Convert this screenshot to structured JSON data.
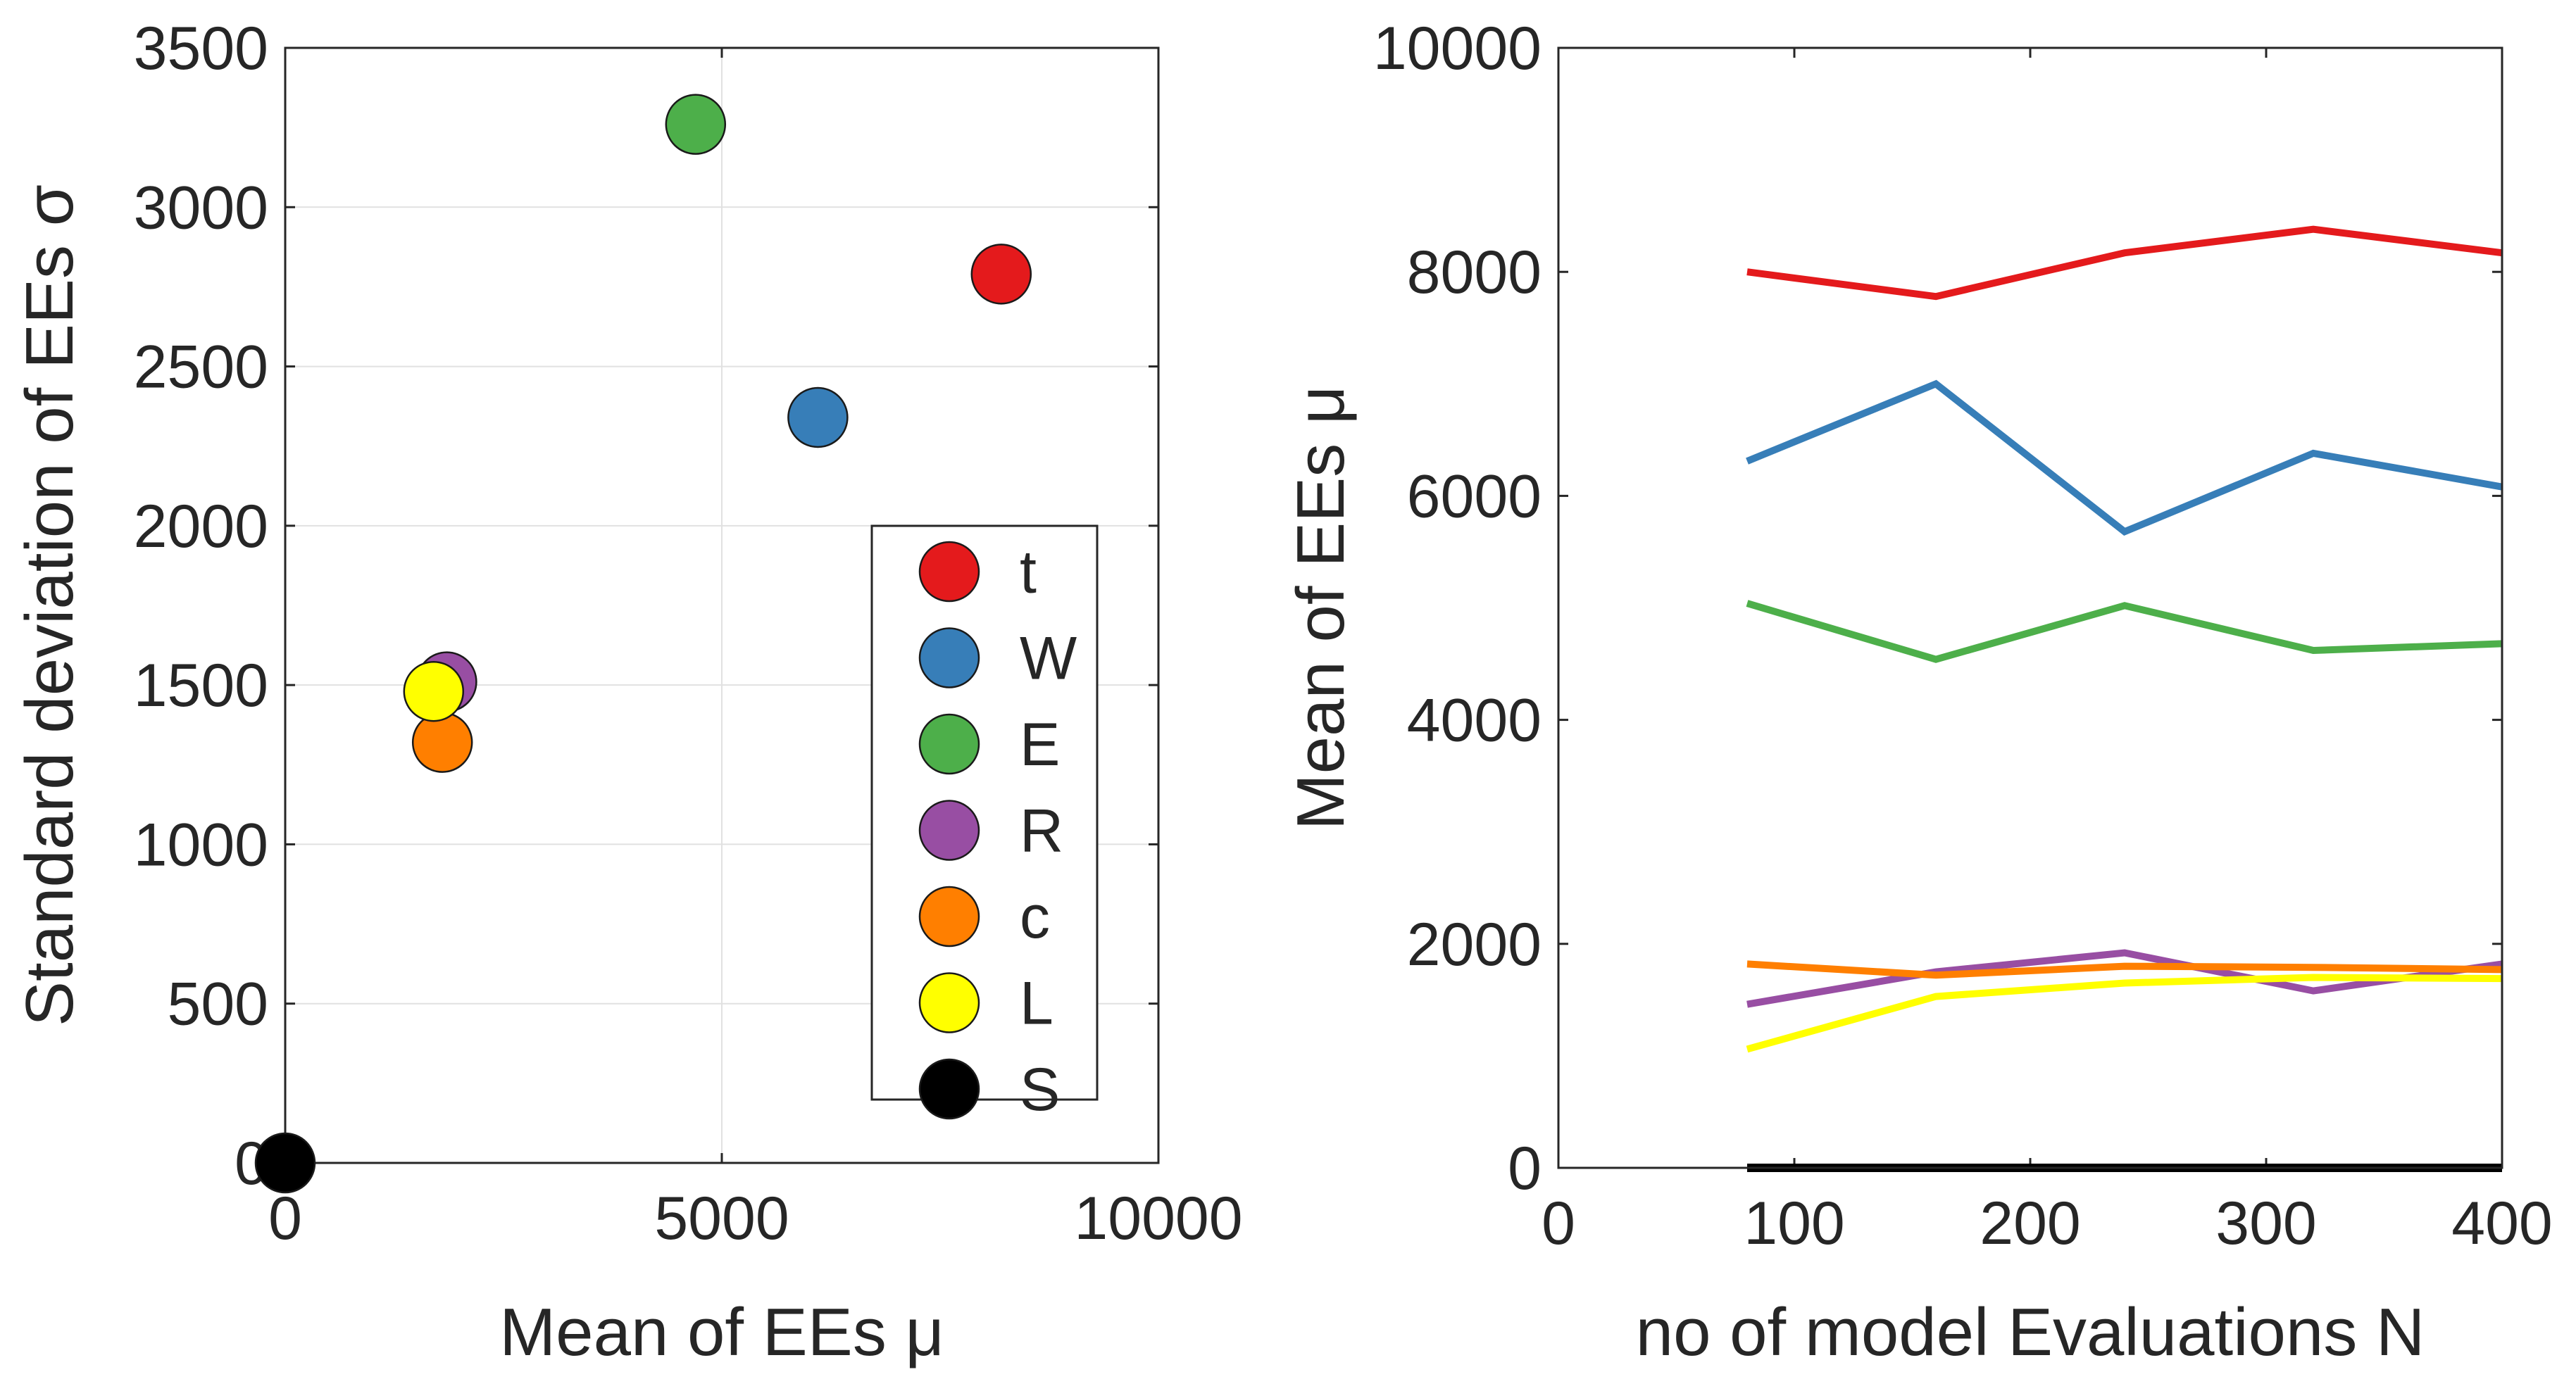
{
  "chart_data": [
    {
      "type": "scatter",
      "title": "",
      "xlabel": "Mean of EEs μ",
      "ylabel": "Standard deviation of EEs σ",
      "xlim": [
        0,
        10000
      ],
      "ylim": [
        0,
        3500
      ],
      "xticks": [
        0,
        5000,
        10000
      ],
      "yticks": [
        0,
        500,
        1000,
        1500,
        2000,
        2500,
        3000,
        3500
      ],
      "xtick_labels": [
        "0",
        "5000",
        "10000"
      ],
      "ytick_labels": [
        "0",
        "500",
        "1000",
        "1500",
        "2000",
        "2500",
        "3000",
        "3500"
      ],
      "grid": true,
      "legend_position": "lower-right",
      "series": [
        {
          "name": "t",
          "color": "#e41a1c",
          "x": 8200,
          "y": 2790
        },
        {
          "name": "W",
          "color": "#377eb8",
          "x": 6100,
          "y": 2340
        },
        {
          "name": "E",
          "color": "#4daf4a",
          "x": 4700,
          "y": 3260
        },
        {
          "name": "R",
          "color": "#984ea3",
          "x": 1850,
          "y": 1510
        },
        {
          "name": "c",
          "color": "#ff7f00",
          "x": 1800,
          "y": 1320
        },
        {
          "name": "L",
          "color": "#ffff00",
          "x": 1700,
          "y": 1480
        },
        {
          "name": "S",
          "color": "#000000",
          "x": 0,
          "y": 0
        }
      ]
    },
    {
      "type": "line",
      "title": "",
      "xlabel": "no of model Evaluations N",
      "ylabel": "Mean of EEs μ",
      "xlim": [
        0,
        400
      ],
      "ylim": [
        0,
        10000
      ],
      "xticks": [
        0,
        100,
        200,
        300,
        400
      ],
      "yticks": [
        0,
        2000,
        4000,
        6000,
        8000,
        10000
      ],
      "xtick_labels": [
        "0",
        "100",
        "200",
        "300",
        "400"
      ],
      "ytick_labels": [
        "0",
        "2000",
        "4000",
        "6000",
        "8000",
        "10000"
      ],
      "grid": false,
      "x": [
        80,
        160,
        240,
        320,
        400
      ],
      "series": [
        {
          "name": "t",
          "color": "#e41a1c",
          "values": [
            8000,
            7780,
            8170,
            8380,
            8170
          ]
        },
        {
          "name": "W",
          "color": "#377eb8",
          "values": [
            6310,
            7000,
            5680,
            6380,
            6080
          ]
        },
        {
          "name": "E",
          "color": "#4daf4a",
          "values": [
            5040,
            4540,
            5020,
            4620,
            4680
          ]
        },
        {
          "name": "R",
          "color": "#984ea3",
          "values": [
            1460,
            1750,
            1920,
            1580,
            1820
          ]
        },
        {
          "name": "c",
          "color": "#ff7f00",
          "values": [
            1820,
            1720,
            1800,
            1790,
            1770
          ]
        },
        {
          "name": "L",
          "color": "#ffff00",
          "values": [
            1060,
            1530,
            1650,
            1700,
            1690
          ]
        },
        {
          "name": "S",
          "color": "#000000",
          "values": [
            0,
            0,
            0,
            0,
            0
          ]
        }
      ]
    }
  ]
}
